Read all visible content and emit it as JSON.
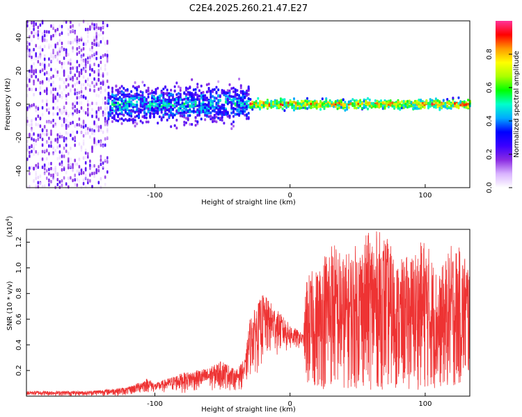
{
  "title": "C2E4.2025.260.21.47.E27",
  "colors": {
    "line": "#ee3333",
    "axis": "#000000",
    "grid": "#888888",
    "colormap": [
      "#ffffff",
      "#d9b3ff",
      "#8a2be2",
      "#3b00ff",
      "#0000ff",
      "#00aaff",
      "#00ffcc",
      "#00ff00",
      "#aaff00",
      "#ffff00",
      "#ff9900",
      "#ff0000",
      "#ff3399"
    ]
  },
  "chart_data": [
    {
      "type": "heatmap",
      "xlabel": "Height of straight line (km)",
      "ylabel": "Frequency (Hz)",
      "xlim": [
        -195,
        133
      ],
      "ylim": [
        -50,
        50
      ],
      "xticks": [
        -100,
        0,
        100
      ],
      "xtick_labels": [
        "-100",
        "0",
        "100"
      ],
      "yticks": [
        -40,
        -20,
        0,
        20,
        40
      ],
      "ytick_labels": [
        "-40",
        "-20",
        "0",
        "20",
        "40"
      ],
      "colorbar": {
        "label": "Normalized spectral amplitude",
        "range": [
          0,
          1
        ],
        "ticks": [
          0.0,
          0.2,
          0.4,
          0.6,
          0.8
        ],
        "tick_labels": [
          "0.0",
          "0.2",
          "0.4",
          "0.6",
          "0.8"
        ]
      },
      "description_regions": [
        {
          "x_range": [
            -195,
            -135
          ],
          "freq_spread": 50,
          "amplitude": 0.18
        },
        {
          "x_range": [
            -135,
            -30
          ],
          "freq_spread": 10,
          "amplitude": 0.45
        },
        {
          "x_range": [
            -30,
            133
          ],
          "freq_spread": 3,
          "amplitude": 0.9
        }
      ]
    },
    {
      "type": "line",
      "xlabel": "Height of straight line (km)",
      "ylabel": "SNR (10 * v/v)",
      "yscale_label": "(x10",
      "yscale_exponent": "4",
      "yscale_close": ")",
      "xlim": [
        -195,
        133
      ],
      "ylim": [
        0,
        1.3
      ],
      "xticks": [
        -100,
        0,
        100
      ],
      "xtick_labels": [
        "-100",
        "0",
        "100"
      ],
      "yticks": [
        0.2,
        0.4,
        0.6,
        0.8,
        1.0,
        1.2
      ],
      "ytick_labels": [
        "0.2",
        "0.4",
        "0.6",
        "0.8",
        "1.0",
        "1.2"
      ],
      "series": [
        {
          "name": "SNR",
          "envelope_x": [
            -195,
            -150,
            -120,
            -105,
            -100,
            -80,
            -60,
            -50,
            -40,
            -33,
            -30,
            -20,
            -10,
            0,
            10,
            12,
            20,
            30,
            40,
            50,
            60,
            70,
            80,
            90,
            100,
            110,
            120,
            133
          ],
          "envelope_max": [
            0.04,
            0.04,
            0.07,
            0.14,
            0.1,
            0.18,
            0.22,
            0.28,
            0.2,
            0.3,
            0.6,
            0.8,
            0.68,
            0.56,
            0.48,
            0.95,
            1.0,
            1.25,
            1.1,
            1.2,
            1.3,
            1.28,
            1.05,
            1.12,
            1.25,
            0.95,
            1.2,
            1.1
          ],
          "envelope_min": [
            0.0,
            0.0,
            0.0,
            0.02,
            0.02,
            0.02,
            0.03,
            0.03,
            0.04,
            0.05,
            0.12,
            0.2,
            0.3,
            0.32,
            0.38,
            0.05,
            0.05,
            0.05,
            0.05,
            0.05,
            0.05,
            0.05,
            0.05,
            0.05,
            0.05,
            0.05,
            0.05,
            0.1
          ]
        }
      ]
    }
  ]
}
